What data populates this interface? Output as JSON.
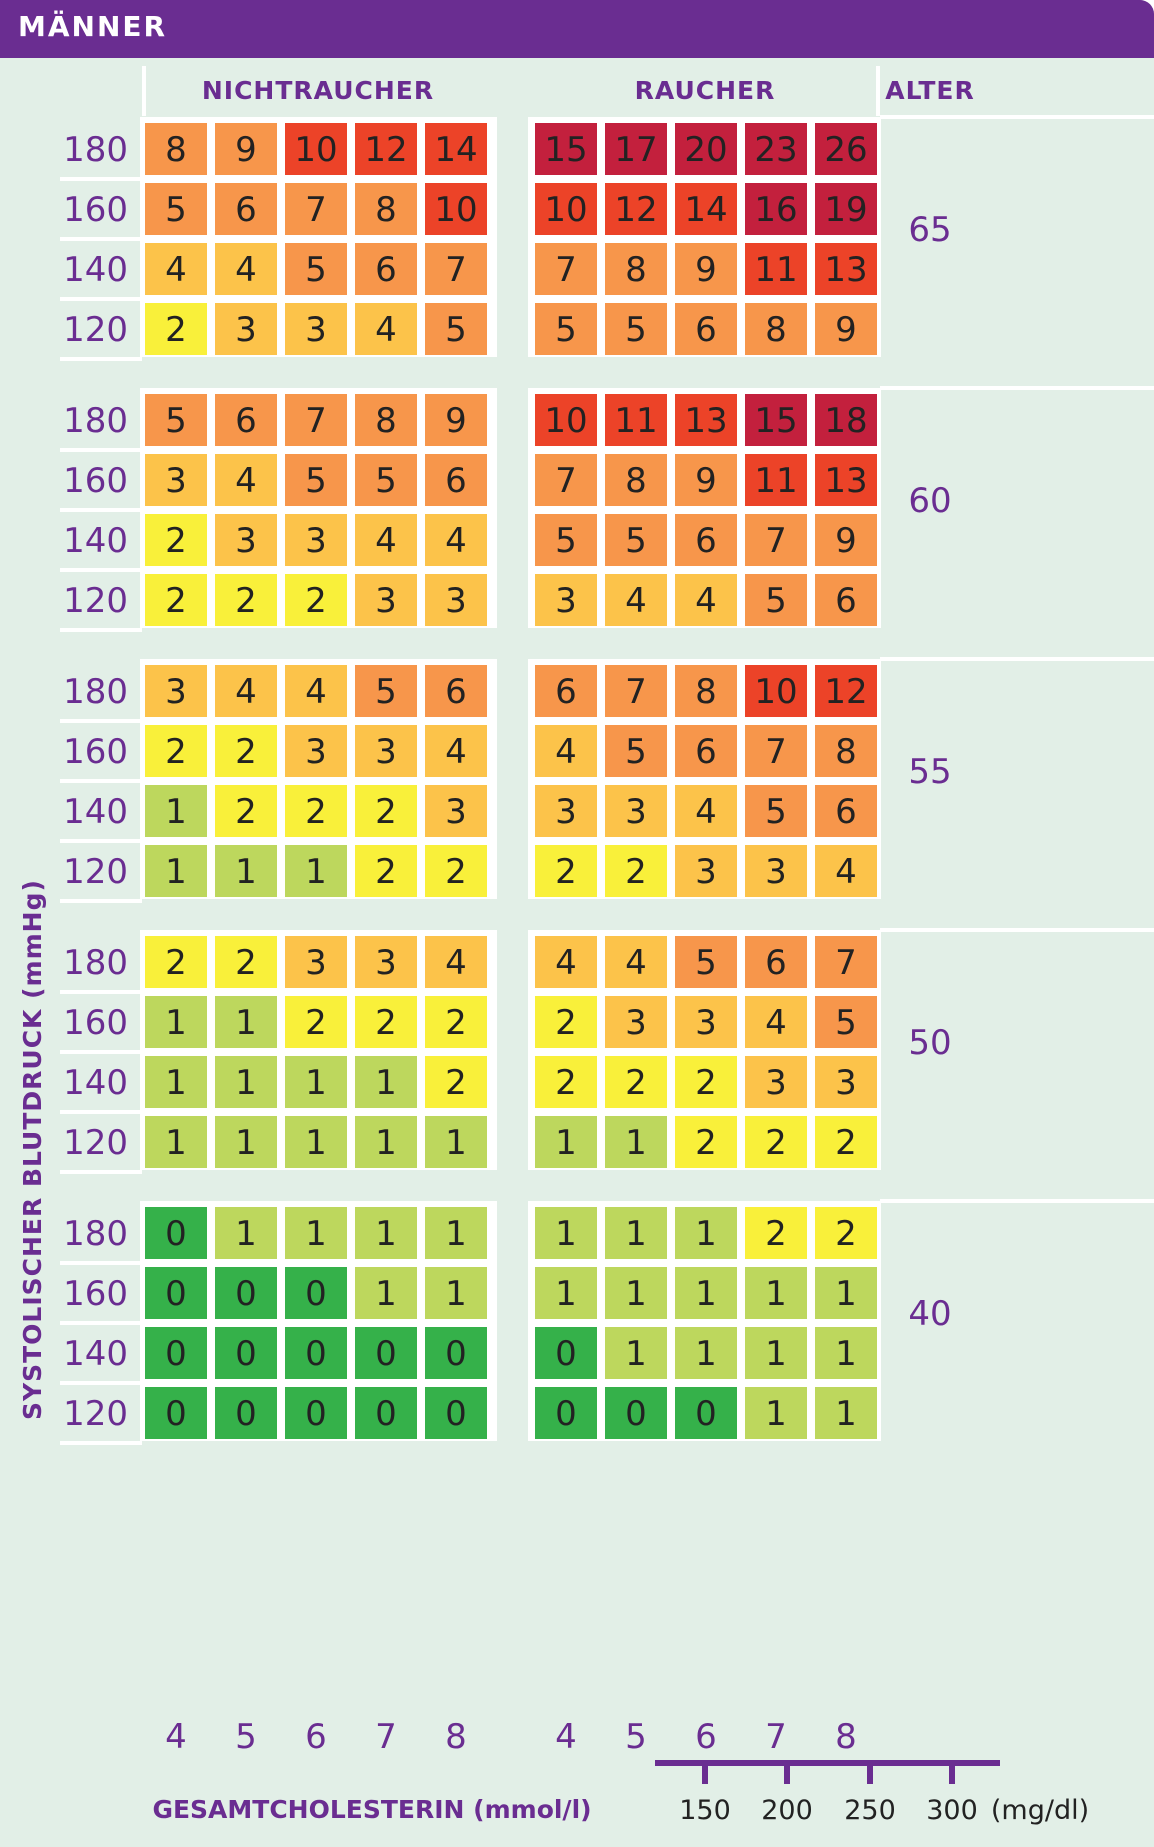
{
  "header": {
    "title": "MÄNNER"
  },
  "colors": {
    "header_bg": "#6a2d91",
    "panel_bg": "#e2efe7",
    "text_purple": "#6a2d91",
    "scale": {
      "0": "#35b14a",
      "1": "#bdd75d",
      "2": "#f9f03a",
      "3": "#fcc34a",
      "4": "#fcc34a",
      "5": "#f7964b",
      "6": "#f7964b",
      "7": "#f7964b",
      "8": "#f7964b",
      "9": "#f7964b",
      "10": "#ec4328",
      "11": "#ec4328",
      "12": "#ec4328",
      "13": "#ec4328",
      "14": "#ec4328",
      "15": "#c3203d",
      "16": "#c3203d",
      "17": "#c3203d",
      "18": "#c3203d",
      "19": "#c3203d",
      "20": "#c3203d",
      "23": "#c3203d",
      "26": "#c3203d"
    }
  },
  "chart_data": {
    "type": "heatmap",
    "title": "MÄNNER",
    "group_labels": [
      "NICHTRAUCHER",
      "RAUCHER"
    ],
    "age_header": "ALTER",
    "ylabel": "SYSTOLISCHER BLUTDRUCK (mmHg)",
    "xlabel": "GESAMTCHOLESTERIN (mmol/l)",
    "bp_levels": [
      "180",
      "160",
      "140",
      "120"
    ],
    "cholesterol_mmol": [
      "4",
      "5",
      "6",
      "7",
      "8"
    ],
    "cholesterol_mgdl_ticks": [
      "150",
      "200",
      "250",
      "300"
    ],
    "mgdl_unit": "(mg/dl)",
    "ages": [
      {
        "age": "65",
        "nichtraucher": [
          [
            8,
            9,
            10,
            12,
            14
          ],
          [
            5,
            6,
            7,
            8,
            10
          ],
          [
            4,
            4,
            5,
            6,
            7
          ],
          [
            2,
            3,
            3,
            4,
            5
          ]
        ],
        "raucher": [
          [
            15,
            17,
            20,
            23,
            26
          ],
          [
            10,
            12,
            14,
            16,
            19
          ],
          [
            7,
            8,
            9,
            11,
            13
          ],
          [
            5,
            5,
            6,
            8,
            9
          ]
        ]
      },
      {
        "age": "60",
        "nichtraucher": [
          [
            5,
            6,
            7,
            8,
            9
          ],
          [
            3,
            4,
            5,
            5,
            6
          ],
          [
            2,
            3,
            3,
            4,
            4
          ],
          [
            2,
            2,
            2,
            3,
            3
          ]
        ],
        "raucher": [
          [
            10,
            11,
            13,
            15,
            18
          ],
          [
            7,
            8,
            9,
            11,
            13
          ],
          [
            5,
            5,
            6,
            7,
            9
          ],
          [
            3,
            4,
            4,
            5,
            6
          ]
        ]
      },
      {
        "age": "55",
        "nichtraucher": [
          [
            3,
            4,
            4,
            5,
            6
          ],
          [
            2,
            2,
            3,
            3,
            4
          ],
          [
            1,
            2,
            2,
            2,
            3
          ],
          [
            1,
            1,
            1,
            2,
            2
          ]
        ],
        "raucher": [
          [
            6,
            7,
            8,
            10,
            12
          ],
          [
            4,
            5,
            6,
            7,
            8
          ],
          [
            3,
            3,
            4,
            5,
            6
          ],
          [
            2,
            2,
            3,
            3,
            4
          ]
        ]
      },
      {
        "age": "50",
        "nichtraucher": [
          [
            2,
            2,
            3,
            3,
            4
          ],
          [
            1,
            1,
            2,
            2,
            2
          ],
          [
            1,
            1,
            1,
            1,
            2
          ],
          [
            1,
            1,
            1,
            1,
            1
          ]
        ],
        "raucher": [
          [
            4,
            4,
            5,
            6,
            7
          ],
          [
            2,
            3,
            3,
            4,
            5
          ],
          [
            2,
            2,
            2,
            3,
            3
          ],
          [
            1,
            1,
            2,
            2,
            2
          ]
        ]
      },
      {
        "age": "40",
        "nichtraucher": [
          [
            0,
            1,
            1,
            1,
            1
          ],
          [
            0,
            0,
            0,
            1,
            1
          ],
          [
            0,
            0,
            0,
            0,
            0
          ],
          [
            0,
            0,
            0,
            0,
            0
          ]
        ],
        "raucher": [
          [
            1,
            1,
            1,
            2,
            2
          ],
          [
            1,
            1,
            1,
            1,
            1
          ],
          [
            0,
            1,
            1,
            1,
            1
          ],
          [
            0,
            0,
            0,
            1,
            1
          ]
        ]
      }
    ]
  }
}
